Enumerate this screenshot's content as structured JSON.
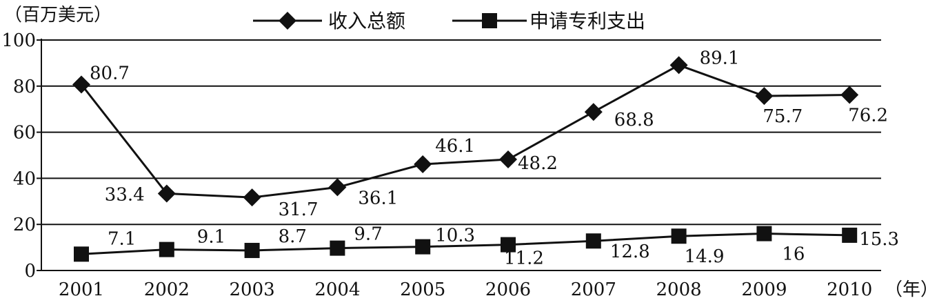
{
  "chart_data": {
    "type": "line",
    "y_unit_label": "（百万美元）",
    "x_unit_label": "（年）",
    "categories": [
      "2001",
      "2002",
      "2003",
      "2004",
      "2005",
      "2006",
      "2007",
      "2008",
      "2009",
      "2010"
    ],
    "ylim": [
      0,
      100
    ],
    "yticks": [
      0,
      20,
      40,
      60,
      80,
      100
    ],
    "grid": true,
    "legend_position": "top",
    "series": [
      {
        "name": "收入总额",
        "marker": "diamond",
        "color": "#111111",
        "values": [
          80.7,
          33.4,
          31.7,
          36.1,
          46.1,
          48.2,
          68.8,
          89.1,
          75.7,
          76.2
        ],
        "labels": [
          "80.7",
          "33.4",
          "31.7",
          "36.1",
          "46.1",
          "48.2",
          "68.8",
          "89.1",
          "75.7",
          "76.2"
        ]
      },
      {
        "name": "申请专利支出",
        "marker": "square",
        "color": "#111111",
        "values": [
          7.1,
          9.1,
          8.7,
          9.7,
          10.3,
          11.2,
          12.8,
          14.9,
          16,
          15.3
        ],
        "labels": [
          "7.1",
          "9.1",
          "8.7",
          "9.7",
          "10.3",
          "11.2",
          "12.8",
          "14.9",
          "16",
          "15.3"
        ]
      }
    ]
  }
}
